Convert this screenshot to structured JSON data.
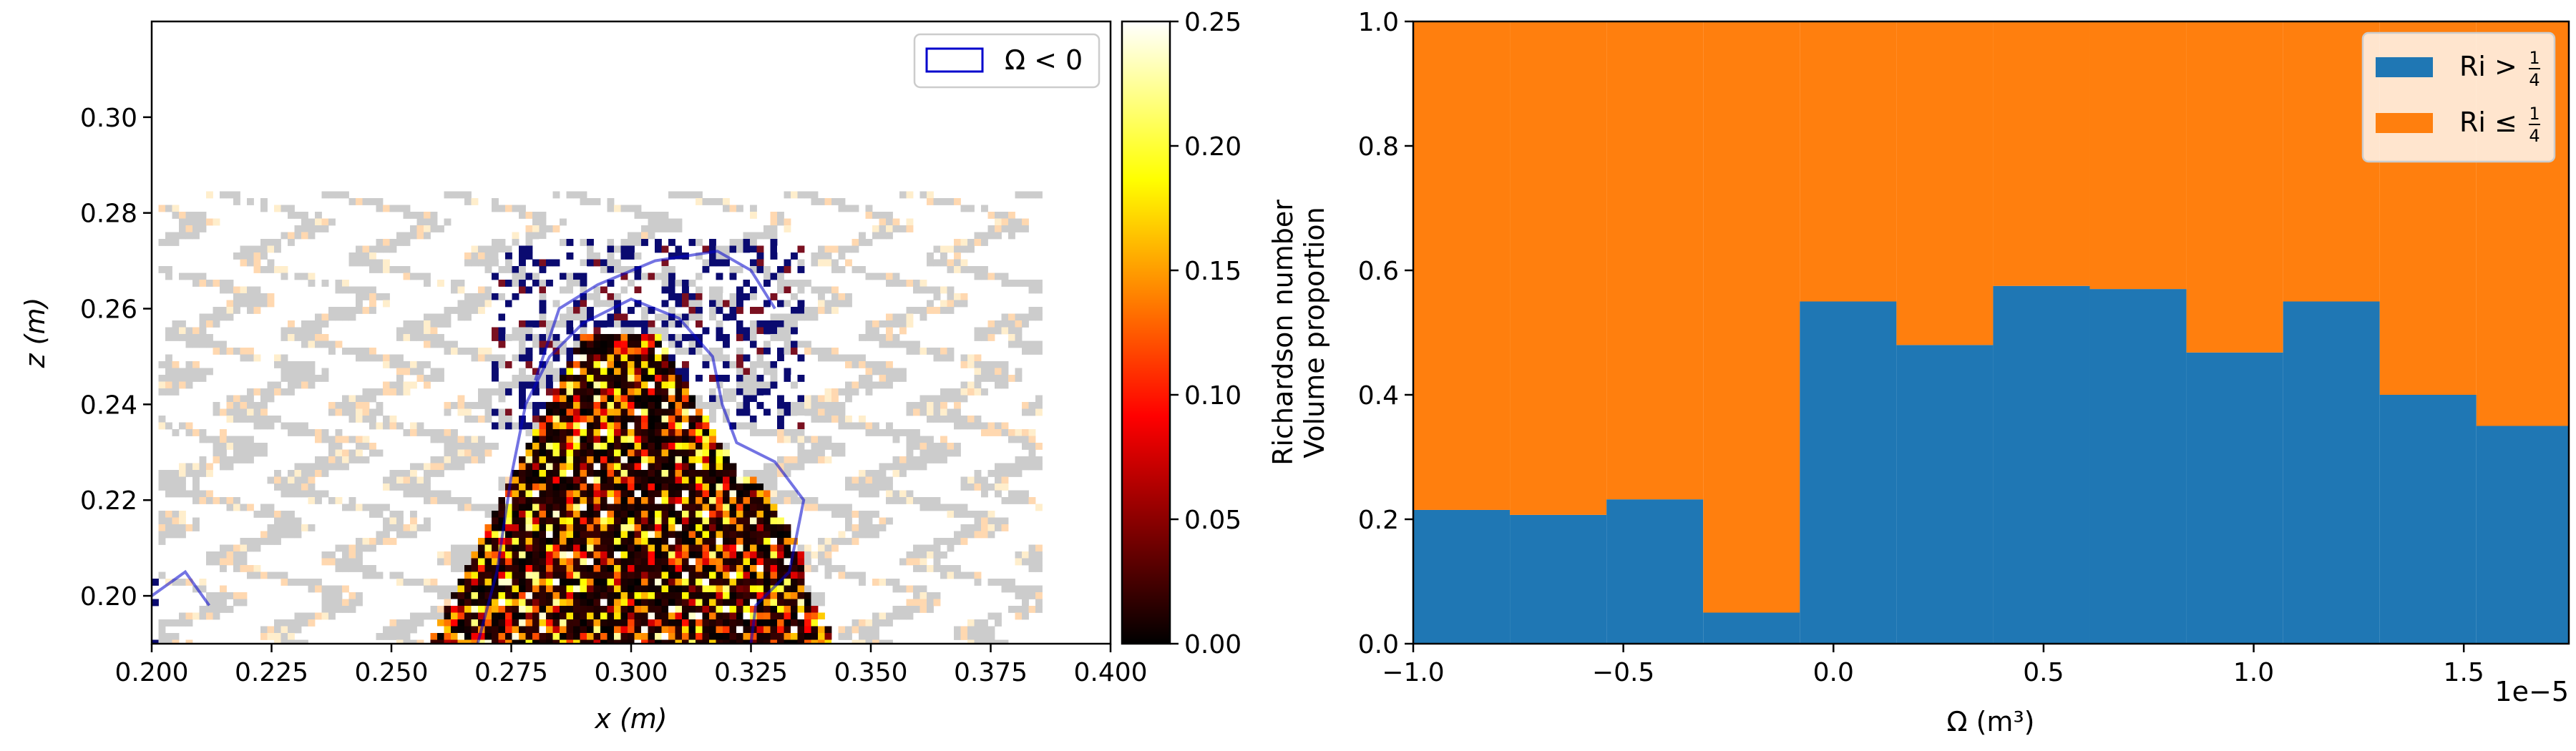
{
  "chart_data": [
    {
      "type": "heatmap",
      "xlabel": "x (m)",
      "ylabel": "z (m)",
      "xlim": [
        0.2,
        0.4
      ],
      "ylim": [
        0.19,
        0.32
      ],
      "xticks": [
        "0.200",
        "0.225",
        "0.250",
        "0.275",
        "0.300",
        "0.325",
        "0.350",
        "0.375",
        "0.400"
      ],
      "yticks": [
        "0.20",
        "0.22",
        "0.24",
        "0.26",
        "0.28",
        "0.30"
      ],
      "colorbar": {
        "colormap": "hot",
        "range": [
          0.0,
          0.25
        ],
        "ticks": [
          "0.00",
          "0.05",
          "0.10",
          "0.15",
          "0.20",
          "0.25"
        ]
      },
      "legend": {
        "label": "Ω < 0",
        "placement": "top-right",
        "color": "#0000cc"
      },
      "contour_color": "#0000cc",
      "background_field_color": "#cccccc",
      "grid": false
    },
    {
      "type": "bar",
      "stacked": true,
      "ylabel_lines": [
        "Richardson number",
        "Volume proportion"
      ],
      "xlabel": "Ω (m³)",
      "x_offset_label": "1e−5",
      "xlim": [
        -1.0,
        1.75
      ],
      "ylim": [
        0.0,
        1.0
      ],
      "xticks": [
        "−1.0",
        "−0.5",
        "0.0",
        "0.5",
        "1.0",
        "1.5"
      ],
      "yticks": [
        "0.0",
        "0.2",
        "0.4",
        "0.6",
        "0.8",
        "1.0"
      ],
      "bin_edges": [
        -1.0,
        -0.77,
        -0.54,
        -0.31,
        -0.08,
        0.15,
        0.38,
        0.61,
        0.84,
        1.07,
        1.3,
        1.53,
        1.76
      ],
      "series": [
        {
          "name": "Ri > 1/4",
          "label_main": "Ri >",
          "frac": [
            "1",
            "4"
          ],
          "color": "#1f77b4",
          "values": [
            0.215,
            0.207,
            0.232,
            0.05,
            0.55,
            0.48,
            0.575,
            0.57,
            0.468,
            0.55,
            0.4,
            0.35
          ]
        },
        {
          "name": "Ri ≤ 1/4",
          "label_main": "Ri ≤",
          "frac": [
            "1",
            "4"
          ],
          "color": "#ff7f0e",
          "values": [
            0.785,
            0.793,
            0.768,
            0.95,
            0.45,
            0.52,
            0.425,
            0.43,
            0.532,
            0.45,
            0.6,
            0.65
          ]
        }
      ],
      "legend_placement": "top-right",
      "grid": false
    }
  ]
}
